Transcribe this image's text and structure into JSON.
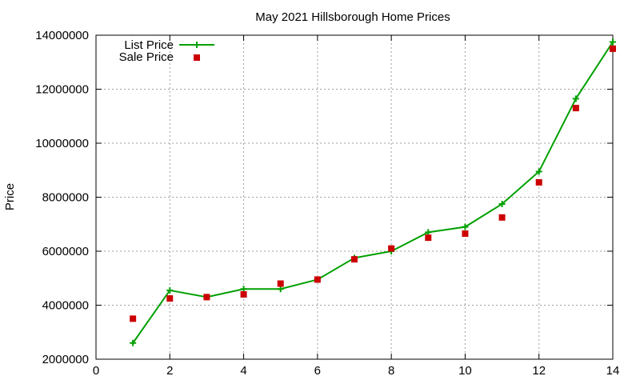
{
  "chart_data": {
    "type": "line",
    "title": "May 2021 Hillsborough Home Prices",
    "xlabel": "",
    "ylabel": "Price",
    "xlim": [
      0,
      14
    ],
    "ylim": [
      2000000,
      14000000
    ],
    "x_ticks": [
      0,
      2,
      4,
      6,
      8,
      10,
      12,
      14
    ],
    "y_ticks": [
      2000000,
      4000000,
      6000000,
      8000000,
      10000000,
      12000000,
      14000000
    ],
    "x_tick_labels": [
      "0",
      "2",
      "4",
      "6",
      "8",
      "10",
      "12",
      "14"
    ],
    "y_tick_labels": [
      "2000000",
      "4000000",
      "6000000",
      "8000000",
      "10000000",
      "12000000",
      "14000000"
    ],
    "grid": true,
    "legend_position": "top-left",
    "series": [
      {
        "name": "List Price",
        "style": "line-with-plus-markers",
        "color": "#00a000",
        "x": [
          1,
          2,
          3,
          4,
          5,
          6,
          7,
          8,
          9,
          10,
          11,
          12,
          13,
          14
        ],
        "y": [
          2600000,
          4550000,
          4300000,
          4600000,
          4600000,
          4950000,
          5750000,
          6000000,
          6700000,
          6900000,
          7750000,
          8950000,
          11650000,
          13750000
        ]
      },
      {
        "name": "Sale Price",
        "style": "square-markers",
        "color": "#cc0000",
        "x": [
          1,
          2,
          3,
          4,
          5,
          6,
          7,
          8,
          9,
          10,
          11,
          12,
          13,
          14
        ],
        "y": [
          3500000,
          4250000,
          4300000,
          4400000,
          4800000,
          4950000,
          5700000,
          6100000,
          6500000,
          6650000,
          7250000,
          8550000,
          11300000,
          13500000
        ]
      }
    ]
  }
}
